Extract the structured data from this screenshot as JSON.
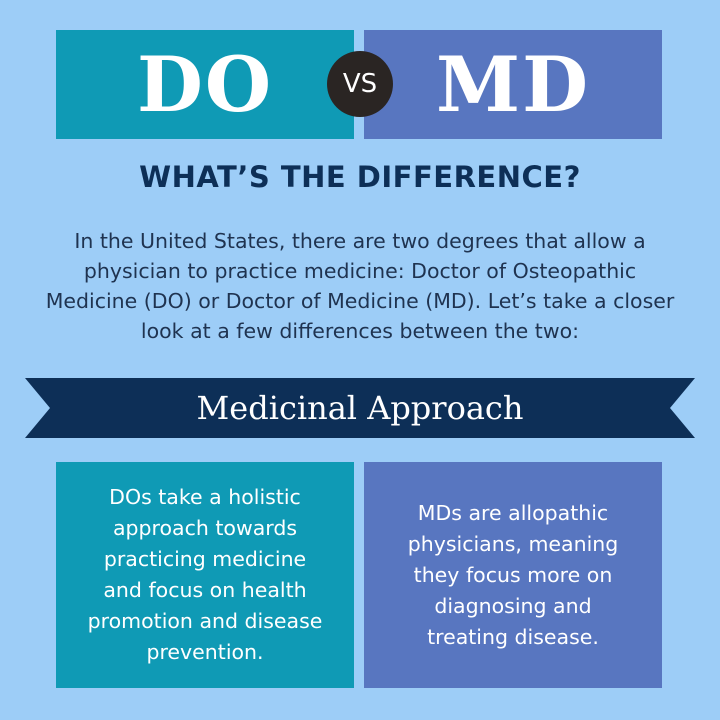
{
  "header": {
    "left_label": "DO",
    "vs_label": "VS",
    "right_label": "MD"
  },
  "heading": "WHAT’S THE DIFFERENCE?",
  "intro": "In the United States, there are two degrees that allow a physician to practice medicine: Doctor of Osteopathic Medicine (DO) or Doctor of Medicine (MD). Let’s take a closer look at a few differences between the two:",
  "section": {
    "title": "Medicinal Approach",
    "do_text": "DOs take a holistic approach towards practicing medicine and focus on health promotion and disease prevention.",
    "md_text": "MDs are allopathic physicians, meaning they focus more on diagnosing and treating disease."
  },
  "colors": {
    "background": "#9dcdf7",
    "do": "#0f9ab5",
    "md": "#5876c0",
    "navy": "#0d2f57"
  }
}
